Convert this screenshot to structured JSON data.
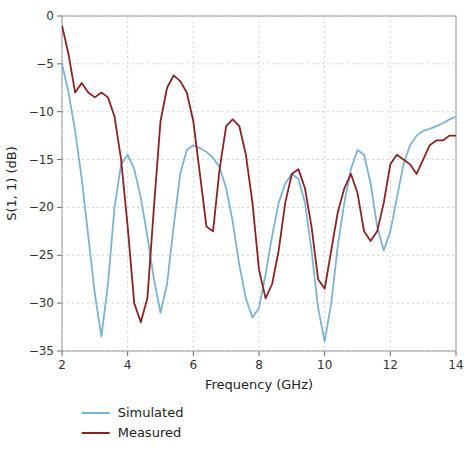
{
  "chart_data": {
    "type": "line",
    "xlabel": "Frequency (GHz)",
    "ylabel": "S(1, 1) (dB)",
    "xlim": [
      2,
      14
    ],
    "ylim": [
      -35,
      0
    ],
    "xticks": [
      2,
      4,
      6,
      8,
      10,
      12,
      14
    ],
    "yticks": [
      0,
      {
        "value": -5,
        "label": "−5"
      },
      {
        "value": -10,
        "label": "−10"
      },
      {
        "value": -15,
        "label": "−15"
      },
      {
        "value": -20,
        "label": "−20"
      },
      {
        "value": -25,
        "label": "−25"
      },
      {
        "value": -30,
        "label": "−30"
      },
      {
        "value": -35,
        "label": "−35"
      }
    ],
    "grid": true,
    "legend": "bottom",
    "x": [
      2.0,
      2.2,
      2.4,
      2.6,
      2.8,
      3.0,
      3.2,
      3.4,
      3.6,
      3.8,
      4.0,
      4.2,
      4.4,
      4.6,
      4.8,
      5.0,
      5.2,
      5.4,
      5.6,
      5.8,
      6.0,
      6.2,
      6.4,
      6.6,
      6.8,
      7.0,
      7.2,
      7.4,
      7.6,
      7.8,
      8.0,
      8.2,
      8.4,
      8.6,
      8.8,
      9.0,
      9.2,
      9.4,
      9.6,
      9.8,
      10.0,
      10.2,
      10.4,
      10.6,
      10.8,
      11.0,
      11.2,
      11.4,
      11.6,
      11.8,
      12.0,
      12.2,
      12.4,
      12.6,
      12.8,
      13.0,
      13.2,
      13.4,
      13.6,
      13.8,
      14.0
    ],
    "series": [
      {
        "name": "Simulated",
        "color": "#7ab3d4",
        "values": [
          -5.0,
          -8.0,
          -12.0,
          -17.0,
          -23.0,
          -29.0,
          -33.5,
          -28.0,
          -20.0,
          -15.5,
          -14.5,
          -16.0,
          -19.0,
          -23.0,
          -27.5,
          -31.0,
          -28.0,
          -22.0,
          -16.5,
          -14.0,
          -13.5,
          -13.8,
          -14.2,
          -14.8,
          -15.8,
          -18.0,
          -21.5,
          -26.0,
          -29.5,
          -31.5,
          -30.5,
          -27.0,
          -23.0,
          -19.5,
          -17.5,
          -16.5,
          -17.0,
          -19.5,
          -24.5,
          -30.5,
          -34.0,
          -30.0,
          -24.0,
          -19.5,
          -16.0,
          -14.0,
          -14.5,
          -17.5,
          -22.0,
          -24.5,
          -22.5,
          -19.0,
          -15.5,
          -13.5,
          -12.5,
          -12.0,
          -11.8,
          -11.5,
          -11.2,
          -10.8,
          -10.5
        ]
      },
      {
        "name": "Measured",
        "color": "#8b2222",
        "values": [
          -1.0,
          -4.0,
          -8.0,
          -7.0,
          -8.0,
          -8.5,
          -8.0,
          -8.5,
          -10.5,
          -15.0,
          -22.0,
          -30.0,
          -32.0,
          -29.5,
          -20.0,
          -11.0,
          -7.5,
          -6.2,
          -6.8,
          -8.0,
          -11.0,
          -16.5,
          -22.0,
          -22.5,
          -16.0,
          -11.5,
          -10.8,
          -11.5,
          -14.5,
          -19.5,
          -26.5,
          -29.5,
          -28.0,
          -24.5,
          -19.5,
          -16.5,
          -16.0,
          -18.0,
          -22.0,
          -27.5,
          -28.5,
          -24.5,
          -20.5,
          -18.0,
          -16.5,
          -18.5,
          -22.5,
          -23.5,
          -22.5,
          -19.5,
          -15.5,
          -14.5,
          -15.0,
          -15.5,
          -16.5,
          -15.0,
          -13.5,
          -13.0,
          -13.0,
          -12.5,
          -12.5
        ]
      }
    ]
  }
}
